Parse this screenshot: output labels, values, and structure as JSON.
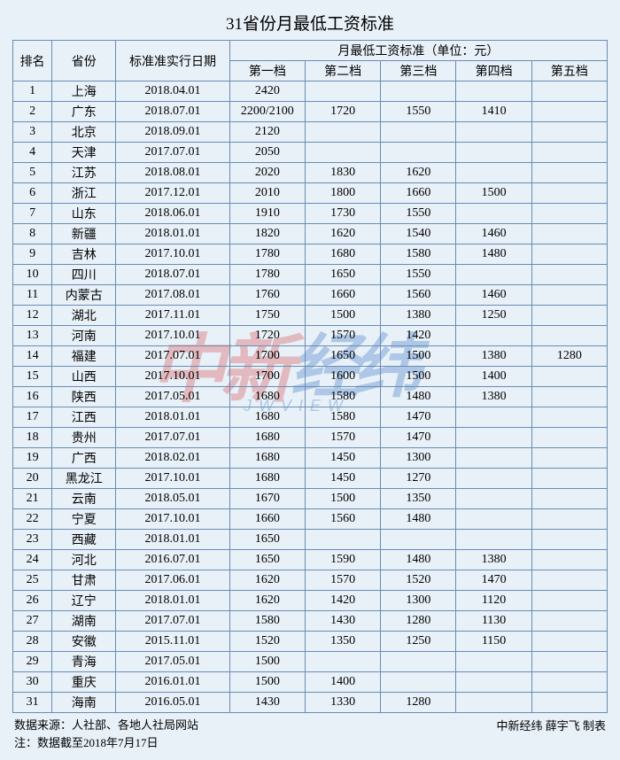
{
  "title": "31省份月最低工资标准",
  "headers": {
    "rank": "排名",
    "province": "省份",
    "date": "标准准实行日期",
    "wage_group": "月最低工资标准（单位：元）",
    "tier1": "第一档",
    "tier2": "第二档",
    "tier3": "第三档",
    "tier4": "第四档",
    "tier5": "第五档"
  },
  "rows": [
    {
      "rank": "1",
      "prov": "上海",
      "date": "2018.04.01",
      "t1": "2420",
      "t2": "",
      "t3": "",
      "t4": "",
      "t5": ""
    },
    {
      "rank": "2",
      "prov": "广东",
      "date": "2018.07.01",
      "t1": "2200/2100",
      "t2": "1720",
      "t3": "1550",
      "t4": "1410",
      "t5": ""
    },
    {
      "rank": "3",
      "prov": "北京",
      "date": "2018.09.01",
      "t1": "2120",
      "t2": "",
      "t3": "",
      "t4": "",
      "t5": ""
    },
    {
      "rank": "4",
      "prov": "天津",
      "date": "2017.07.01",
      "t1": "2050",
      "t2": "",
      "t3": "",
      "t4": "",
      "t5": ""
    },
    {
      "rank": "5",
      "prov": "江苏",
      "date": "2018.08.01",
      "t1": "2020",
      "t2": "1830",
      "t3": "1620",
      "t4": "",
      "t5": ""
    },
    {
      "rank": "6",
      "prov": "浙江",
      "date": "2017.12.01",
      "t1": "2010",
      "t2": "1800",
      "t3": "1660",
      "t4": "1500",
      "t5": ""
    },
    {
      "rank": "7",
      "prov": "山东",
      "date": "2018.06.01",
      "t1": "1910",
      "t2": "1730",
      "t3": "1550",
      "t4": "",
      "t5": ""
    },
    {
      "rank": "8",
      "prov": "新疆",
      "date": "2018.01.01",
      "t1": "1820",
      "t2": "1620",
      "t3": "1540",
      "t4": "1460",
      "t5": ""
    },
    {
      "rank": "9",
      "prov": "吉林",
      "date": "2017.10.01",
      "t1": "1780",
      "t2": "1680",
      "t3": "1580",
      "t4": "1480",
      "t5": ""
    },
    {
      "rank": "10",
      "prov": "四川",
      "date": "2018.07.01",
      "t1": "1780",
      "t2": "1650",
      "t3": "1550",
      "t4": "",
      "t5": ""
    },
    {
      "rank": "11",
      "prov": "内蒙古",
      "date": "2017.08.01",
      "t1": "1760",
      "t2": "1660",
      "t3": "1560",
      "t4": "1460",
      "t5": ""
    },
    {
      "rank": "12",
      "prov": "湖北",
      "date": "2017.11.01",
      "t1": "1750",
      "t2": "1500",
      "t3": "1380",
      "t4": "1250",
      "t5": ""
    },
    {
      "rank": "13",
      "prov": "河南",
      "date": "2017.10.01",
      "t1": "1720",
      "t2": "1570",
      "t3": "1420",
      "t4": "",
      "t5": ""
    },
    {
      "rank": "14",
      "prov": "福建",
      "date": "2017.07.01",
      "t1": "1700",
      "t2": "1650",
      "t3": "1500",
      "t4": "1380",
      "t5": "1280"
    },
    {
      "rank": "15",
      "prov": "山西",
      "date": "2017.10.01",
      "t1": "1700",
      "t2": "1600",
      "t3": "1500",
      "t4": "1400",
      "t5": ""
    },
    {
      "rank": "16",
      "prov": "陕西",
      "date": "2017.05.01",
      "t1": "1680",
      "t2": "1580",
      "t3": "1480",
      "t4": "1380",
      "t5": ""
    },
    {
      "rank": "17",
      "prov": "江西",
      "date": "2018.01.01",
      "t1": "1680",
      "t2": "1580",
      "t3": "1470",
      "t4": "",
      "t5": ""
    },
    {
      "rank": "18",
      "prov": "贵州",
      "date": "2017.07.01",
      "t1": "1680",
      "t2": "1570",
      "t3": "1470",
      "t4": "",
      "t5": ""
    },
    {
      "rank": "19",
      "prov": "广西",
      "date": "2018.02.01",
      "t1": "1680",
      "t2": "1450",
      "t3": "1300",
      "t4": "",
      "t5": ""
    },
    {
      "rank": "20",
      "prov": "黑龙江",
      "date": "2017.10.01",
      "t1": "1680",
      "t2": "1450",
      "t3": "1270",
      "t4": "",
      "t5": ""
    },
    {
      "rank": "21",
      "prov": "云南",
      "date": "2018.05.01",
      "t1": "1670",
      "t2": "1500",
      "t3": "1350",
      "t4": "",
      "t5": ""
    },
    {
      "rank": "22",
      "prov": "宁夏",
      "date": "2017.10.01",
      "t1": "1660",
      "t2": "1560",
      "t3": "1480",
      "t4": "",
      "t5": ""
    },
    {
      "rank": "23",
      "prov": "西藏",
      "date": "2018.01.01",
      "t1": "1650",
      "t2": "",
      "t3": "",
      "t4": "",
      "t5": ""
    },
    {
      "rank": "24",
      "prov": "河北",
      "date": "2016.07.01",
      "t1": "1650",
      "t2": "1590",
      "t3": "1480",
      "t4": "1380",
      "t5": ""
    },
    {
      "rank": "25",
      "prov": "甘肃",
      "date": "2017.06.01",
      "t1": "1620",
      "t2": "1570",
      "t3": "1520",
      "t4": "1470",
      "t5": ""
    },
    {
      "rank": "26",
      "prov": "辽宁",
      "date": "2018.01.01",
      "t1": "1620",
      "t2": "1420",
      "t3": "1300",
      "t4": "1120",
      "t5": ""
    },
    {
      "rank": "27",
      "prov": "湖南",
      "date": "2017.07.01",
      "t1": "1580",
      "t2": "1430",
      "t3": "1280",
      "t4": "1130",
      "t5": ""
    },
    {
      "rank": "28",
      "prov": "安徽",
      "date": "2015.11.01",
      "t1": "1520",
      "t2": "1350",
      "t3": "1250",
      "t4": "1150",
      "t5": ""
    },
    {
      "rank": "29",
      "prov": "青海",
      "date": "2017.05.01",
      "t1": "1500",
      "t2": "",
      "t3": "",
      "t4": "",
      "t5": ""
    },
    {
      "rank": "30",
      "prov": "重庆",
      "date": "2016.01.01",
      "t1": "1500",
      "t2": "1400",
      "t3": "",
      "t4": "",
      "t5": ""
    },
    {
      "rank": "31",
      "prov": "海南",
      "date": "2016.05.01",
      "t1": "1430",
      "t2": "1330",
      "t3": "1280",
      "t4": "",
      "t5": ""
    }
  ],
  "footer": {
    "source": "数据来源：人社部、各地人社局网站",
    "note": "注：数据截至2018年7月17日",
    "credit": "中新经纬 薛宇飞 制表"
  },
  "watermark": {
    "red_text": "中新",
    "blue_text": "经纬",
    "sub_text": "JWVIEW"
  },
  "colors": {
    "background": "#e8f1f8",
    "border": "#6a8cb5",
    "text": "#000000",
    "wm_red": "#d62c2c",
    "wm_blue": "#1c5fb8"
  }
}
